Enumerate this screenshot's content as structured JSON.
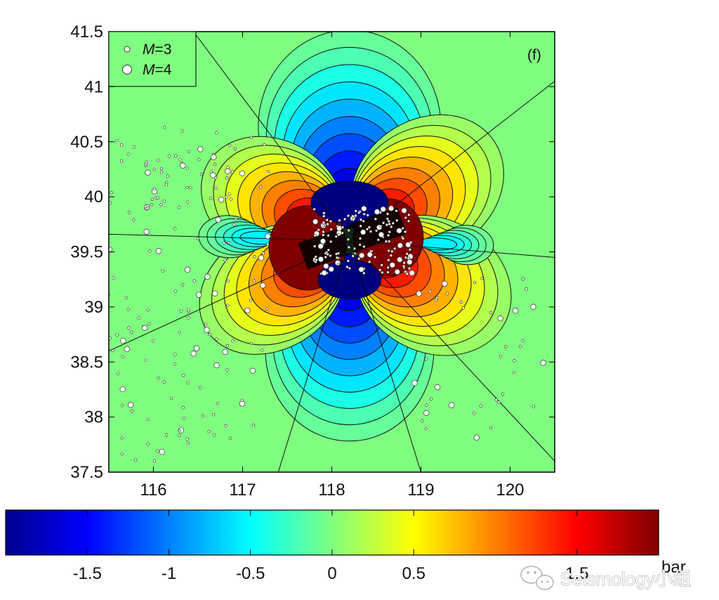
{
  "chart_data": {
    "type": "contour-map",
    "panel_label": "(f)",
    "xlim": [
      115.5,
      120.5
    ],
    "ylim": [
      37.5,
      41.5
    ],
    "x_ticks": [
      "116",
      "117",
      "118",
      "119",
      "120"
    ],
    "y_ticks": [
      "37.5",
      "38",
      "38.5",
      "39",
      "39.5",
      "40",
      "40.5",
      "41",
      "41.5"
    ],
    "legend": {
      "placement": "top-left",
      "entries": [
        {
          "symbol": "M",
          "label": "=3"
        },
        {
          "symbol": "M",
          "label": "=4"
        }
      ]
    },
    "colorbar": {
      "range": [
        -2,
        2
      ],
      "ticks": [
        "-1.5",
        "-1",
        "-0.5",
        "0",
        "0.5",
        "1.5"
      ],
      "unit": "bar",
      "colormap": "jet"
    },
    "field": {
      "pattern": "four-lobed quadrant stress change",
      "center": [
        118.2,
        39.6
      ],
      "negative_lobes": "north and south",
      "positive_lobes": "northeast, southwest, east, west-northwest",
      "contour_levels": [
        -1.8,
        -1.6,
        -1.4,
        -1.2,
        -1.0,
        -0.8,
        -0.6,
        -0.4,
        -0.2,
        -0.1,
        0.1,
        0.2,
        0.4,
        0.6,
        0.8,
        1.0,
        1.2,
        1.4,
        1.6,
        1.8
      ]
    }
  },
  "watermark": "Seismology小组",
  "colors": {
    "jet_dark_blue": "#00008f",
    "jet_cyan": "#00ffff",
    "jet_green": "#7fff7f",
    "jet_yellow": "#ffff00",
    "jet_dark_red": "#800000"
  }
}
